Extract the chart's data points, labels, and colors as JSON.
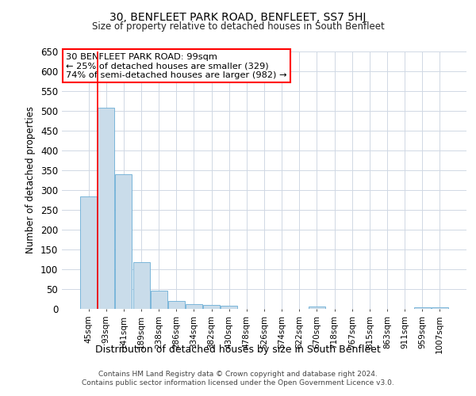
{
  "title": "30, BENFLEET PARK ROAD, BENFLEET, SS7 5HJ",
  "subtitle": "Size of property relative to detached houses in South Benfleet",
  "xlabel": "Distribution of detached houses by size in South Benfleet",
  "ylabel": "Number of detached properties",
  "footer1": "Contains HM Land Registry data © Crown copyright and database right 2024.",
  "footer2": "Contains public sector information licensed under the Open Government Licence v3.0.",
  "annotation_line1": "30 BENFLEET PARK ROAD: 99sqm",
  "annotation_line2": "← 25% of detached houses are smaller (329)",
  "annotation_line3": "74% of semi-detached houses are larger (982) →",
  "bar_labels": [
    "45sqm",
    "93sqm",
    "141sqm",
    "189sqm",
    "238sqm",
    "286sqm",
    "334sqm",
    "382sqm",
    "430sqm",
    "478sqm",
    "526sqm",
    "574sqm",
    "622sqm",
    "670sqm",
    "718sqm",
    "767sqm",
    "815sqm",
    "863sqm",
    "911sqm",
    "959sqm",
    "1007sqm"
  ],
  "bar_values": [
    285,
    508,
    340,
    118,
    47,
    20,
    12,
    10,
    8,
    0,
    0,
    0,
    0,
    6,
    0,
    0,
    0,
    0,
    0,
    5,
    5
  ],
  "bar_color": "#c9dcea",
  "bar_edge_color": "#6aadd5",
  "grid_color": "#d0d8e4",
  "ylim": [
    0,
    650
  ],
  "yticks": [
    0,
    50,
    100,
    150,
    200,
    250,
    300,
    350,
    400,
    450,
    500,
    550,
    600,
    650
  ],
  "red_line_x": 0.5,
  "annotation_box_color": "red",
  "background_color": "#ffffff"
}
